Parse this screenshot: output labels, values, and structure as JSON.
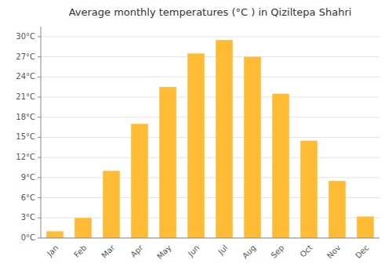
{
  "chart_data": {
    "type": "bar",
    "title": "Average monthly temperatures (°C ) in Qiziltepa Shahri",
    "categories": [
      "Jan",
      "Feb",
      "Mar",
      "Apr",
      "May",
      "Jun",
      "Jul",
      "Aug",
      "Sep",
      "Oct",
      "Nov",
      "Dec"
    ],
    "values": [
      1.0,
      3.0,
      10.0,
      17.0,
      22.5,
      27.5,
      29.5,
      27.0,
      21.5,
      14.5,
      8.5,
      3.2
    ],
    "color": "#FFBB33",
    "ylim": [
      0,
      31.5
    ],
    "yticks": [
      {
        "value": 0,
        "label": "0°C"
      },
      {
        "value": 3,
        "label": "3°C"
      },
      {
        "value": 6,
        "label": "6°C"
      },
      {
        "value": 9,
        "label": "9°C"
      },
      {
        "value": 12,
        "label": "12°C"
      },
      {
        "value": 15,
        "label": "15°C"
      },
      {
        "value": 18,
        "label": "18°C"
      },
      {
        "value": 21,
        "label": "21°C"
      },
      {
        "value": 24,
        "label": "24°C"
      },
      {
        "value": 27,
        "label": "27°C"
      },
      {
        "value": 30,
        "label": "30°C"
      }
    ],
    "grid": true
  }
}
